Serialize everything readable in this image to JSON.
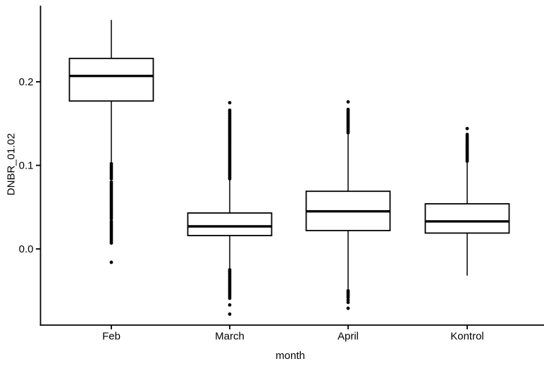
{
  "chart_data": {
    "type": "boxplot",
    "title": "",
    "xlabel": "month",
    "ylabel": "DNBR_01.02",
    "categories": [
      "Feb",
      "March",
      "April",
      "Kontrol"
    ],
    "y_ticks": [
      0.0,
      0.1,
      0.2
    ],
    "ylim": [
      -0.091,
      0.291
    ],
    "grid": false,
    "legend": "none",
    "colors": {
      "stroke": "#000000",
      "fill": "#ffffff",
      "background": "#ffffff"
    },
    "series": [
      {
        "category": "Feb",
        "whisker_low": 0.104,
        "q1": 0.177,
        "median": 0.207,
        "q3": 0.228,
        "whisker_high": 0.274,
        "outliers": [
          0.102,
          0.1,
          0.098,
          0.096,
          0.094,
          0.092,
          0.09,
          0.088,
          0.086,
          0.084,
          0.08,
          0.078,
          0.076,
          0.074,
          0.072,
          0.07,
          0.068,
          0.066,
          0.064,
          0.062,
          0.06,
          0.058,
          0.056,
          0.054,
          0.052,
          0.05,
          0.048,
          0.046,
          0.044,
          0.042,
          0.04,
          0.038,
          0.036,
          0.033,
          0.031,
          0.029,
          0.027,
          0.025,
          0.023,
          0.021,
          0.019,
          0.017,
          0.015,
          0.013,
          0.011,
          0.009,
          0.007,
          -0.016
        ]
      },
      {
        "category": "March",
        "whisker_low": -0.025,
        "q1": 0.016,
        "median": 0.027,
        "q3": 0.043,
        "whisker_high": 0.083,
        "outliers": [
          0.175,
          0.166,
          0.164,
          0.162,
          0.16,
          0.158,
          0.156,
          0.154,
          0.152,
          0.15,
          0.148,
          0.146,
          0.144,
          0.142,
          0.14,
          0.138,
          0.136,
          0.134,
          0.132,
          0.13,
          0.128,
          0.126,
          0.124,
          0.122,
          0.12,
          0.118,
          0.116,
          0.114,
          0.112,
          0.11,
          0.108,
          0.106,
          0.104,
          0.102,
          0.1,
          0.098,
          0.096,
          0.094,
          0.092,
          0.09,
          0.088,
          0.086,
          0.084,
          -0.025,
          -0.027,
          -0.029,
          -0.031,
          -0.033,
          -0.035,
          -0.037,
          -0.039,
          -0.041,
          -0.043,
          -0.045,
          -0.047,
          -0.049,
          -0.051,
          -0.053,
          -0.055,
          -0.057,
          -0.059,
          -0.067,
          -0.078
        ]
      },
      {
        "category": "April",
        "whisker_low": -0.048,
        "q1": 0.022,
        "median": 0.045,
        "q3": 0.069,
        "whisker_high": 0.138,
        "outliers": [
          0.176,
          0.167,
          0.165,
          0.163,
          0.161,
          0.159,
          0.157,
          0.155,
          0.153,
          0.151,
          0.149,
          0.147,
          0.145,
          0.143,
          0.141,
          0.139,
          -0.05,
          -0.052,
          -0.054,
          -0.056,
          -0.058,
          -0.061,
          -0.064,
          -0.071
        ]
      },
      {
        "category": "Kontrol",
        "whisker_low": -0.032,
        "q1": 0.019,
        "median": 0.033,
        "q3": 0.054,
        "whisker_high": 0.104,
        "outliers": [
          0.144,
          0.137,
          0.135,
          0.133,
          0.131,
          0.129,
          0.127,
          0.125,
          0.123,
          0.121,
          0.119,
          0.117,
          0.115,
          0.113,
          0.111,
          0.109,
          0.107,
          0.105
        ]
      }
    ]
  }
}
